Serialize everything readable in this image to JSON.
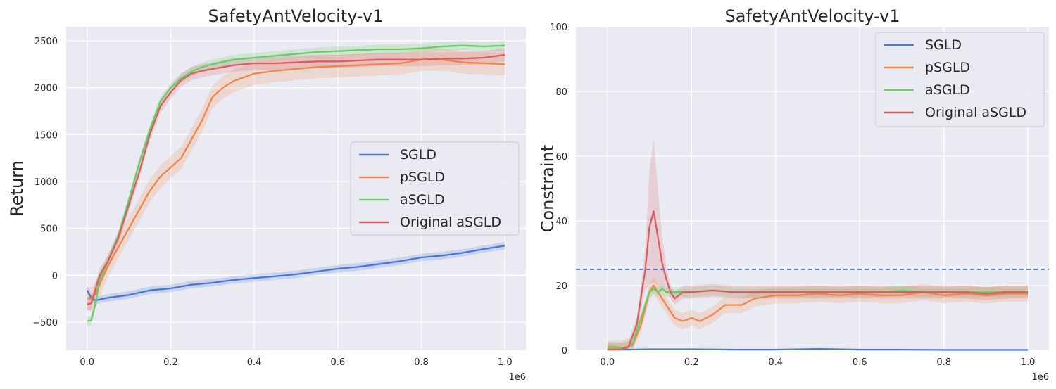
{
  "colors": {
    "SGLD": "#4878d0",
    "pSGLD": "#ee854a",
    "aSGLD": "#6acc64",
    "Original aSGLD": "#d65f5f",
    "threshold": "#4878d0"
  },
  "chart_data": [
    {
      "type": "line",
      "title": "SafetyAntVelocity-v1",
      "xlabel": "",
      "ylabel": "Return",
      "x_offset_label": "1e6",
      "xlim": [
        -0.05,
        1.05
      ],
      "ylim": [
        -800,
        2650
      ],
      "xticks": [
        0.0,
        0.2,
        0.4,
        0.6,
        0.8,
        1.0
      ],
      "xtick_labels": [
        "0.0",
        "0.2",
        "0.4",
        "0.6",
        "0.8",
        "1.0"
      ],
      "yticks": [
        -500,
        0,
        500,
        1000,
        1500,
        2000,
        2500
      ],
      "ytick_labels": [
        "−500",
        "0",
        "500",
        "1000",
        "1500",
        "2000",
        "2500"
      ],
      "legend": {
        "position": "center-right",
        "entries": [
          "SGLD",
          "pSGLD",
          "aSGLD",
          "Original aSGLD"
        ]
      },
      "series": [
        {
          "name": "SGLD",
          "x": [
            0,
            0.01,
            0.02,
            0.05,
            0.1,
            0.15,
            0.2,
            0.25,
            0.3,
            0.35,
            0.4,
            0.45,
            0.5,
            0.55,
            0.6,
            0.65,
            0.7,
            0.75,
            0.8,
            0.85,
            0.9,
            0.95,
            1.0
          ],
          "values": [
            -160,
            -240,
            -270,
            -240,
            -210,
            -160,
            -140,
            -100,
            -80,
            -50,
            -30,
            -10,
            10,
            40,
            70,
            90,
            120,
            150,
            190,
            210,
            240,
            280,
            315
          ],
          "band": 40
        },
        {
          "name": "pSGLD",
          "x": [
            0,
            0.01,
            0.02,
            0.03,
            0.05,
            0.075,
            0.1,
            0.125,
            0.15,
            0.175,
            0.2,
            0.225,
            0.25,
            0.275,
            0.3,
            0.325,
            0.35,
            0.4,
            0.45,
            0.5,
            0.55,
            0.6,
            0.65,
            0.7,
            0.75,
            0.8,
            0.85,
            0.9,
            0.95,
            1.0
          ],
          "values": [
            -240,
            -250,
            -200,
            -100,
            100,
            300,
            500,
            700,
            900,
            1050,
            1150,
            1250,
            1450,
            1650,
            1900,
            2000,
            2070,
            2150,
            2180,
            2200,
            2220,
            2230,
            2240,
            2250,
            2260,
            2300,
            2300,
            2270,
            2260,
            2250
          ],
          "band": 120
        },
        {
          "name": "aSGLD",
          "x": [
            0,
            0.01,
            0.02,
            0.03,
            0.05,
            0.075,
            0.1,
            0.125,
            0.15,
            0.175,
            0.2,
            0.225,
            0.25,
            0.275,
            0.3,
            0.35,
            0.4,
            0.45,
            0.5,
            0.55,
            0.6,
            0.65,
            0.7,
            0.75,
            0.8,
            0.85,
            0.9,
            0.95,
            1.0
          ],
          "values": [
            -490,
            -480,
            -300,
            -50,
            150,
            420,
            800,
            1200,
            1550,
            1850,
            2000,
            2100,
            2170,
            2220,
            2250,
            2300,
            2320,
            2340,
            2360,
            2380,
            2390,
            2400,
            2410,
            2410,
            2420,
            2440,
            2450,
            2440,
            2450
          ],
          "band": 50
        },
        {
          "name": "Original aSGLD",
          "x": [
            0,
            0.01,
            0.02,
            0.03,
            0.05,
            0.075,
            0.1,
            0.125,
            0.15,
            0.175,
            0.2,
            0.225,
            0.25,
            0.275,
            0.3,
            0.35,
            0.4,
            0.45,
            0.5,
            0.55,
            0.6,
            0.65,
            0.7,
            0.75,
            0.8,
            0.85,
            0.9,
            0.95,
            1.0
          ],
          "values": [
            -310,
            -300,
            -150,
            0,
            150,
            400,
            750,
            1100,
            1500,
            1800,
            1950,
            2080,
            2150,
            2180,
            2200,
            2240,
            2260,
            2260,
            2270,
            2280,
            2280,
            2290,
            2300,
            2300,
            2300,
            2310,
            2310,
            2320,
            2350
          ],
          "band": 70
        }
      ]
    },
    {
      "type": "line",
      "title": "SafetyAntVelocity-v1",
      "xlabel": "",
      "ylabel": "Constraint",
      "x_offset_label": "1e6",
      "xlim": [
        -0.075,
        1.05
      ],
      "ylim": [
        0,
        100
      ],
      "xticks": [
        0.0,
        0.2,
        0.4,
        0.6,
        0.8,
        1.0
      ],
      "xtick_labels": [
        "0.0",
        "0.2",
        "0.4",
        "0.6",
        "0.8",
        "1.0"
      ],
      "yticks": [
        0,
        20,
        40,
        60,
        80,
        100
      ],
      "ytick_labels": [
        "0",
        "20",
        "40",
        "60",
        "80",
        "100"
      ],
      "threshold": 25,
      "legend": {
        "position": "top-right",
        "entries": [
          "SGLD",
          "pSGLD",
          "aSGLD",
          "Original aSGLD"
        ]
      },
      "series": [
        {
          "name": "SGLD",
          "x": [
            0,
            0.05,
            0.1,
            0.2,
            0.3,
            0.4,
            0.5,
            0.6,
            0.7,
            0.8,
            0.9,
            1.0
          ],
          "values": [
            0.2,
            0.2,
            0.3,
            0.3,
            0.2,
            0.2,
            0.4,
            0.2,
            0.2,
            0.1,
            0.1,
            0.1
          ],
          "band": 0.3
        },
        {
          "name": "pSGLD",
          "x": [
            0,
            0.03,
            0.06,
            0.08,
            0.1,
            0.11,
            0.12,
            0.14,
            0.16,
            0.18,
            0.2,
            0.22,
            0.25,
            0.28,
            0.3,
            0.32,
            0.35,
            0.4,
            0.45,
            0.5,
            0.55,
            0.6,
            0.65,
            0.7,
            0.75,
            0.8,
            0.85,
            0.9,
            0.95,
            1.0
          ],
          "values": [
            0.5,
            0.5,
            1.5,
            8,
            18,
            20,
            18,
            14,
            10,
            9,
            10,
            9,
            11,
            14,
            14,
            14,
            16,
            17,
            17,
            17.5,
            17,
            17.5,
            17,
            17,
            18,
            17,
            17.5,
            17,
            17.5,
            17.5
          ],
          "band": 2.5
        },
        {
          "name": "aSGLD",
          "x": [
            0,
            0.02,
            0.04,
            0.06,
            0.08,
            0.1,
            0.11,
            0.12,
            0.13,
            0.14,
            0.16,
            0.18,
            0.2,
            0.25,
            0.3,
            0.35,
            0.4,
            0.45,
            0.5,
            0.55,
            0.6,
            0.65,
            0.7,
            0.75,
            0.8,
            0.85,
            0.9,
            0.95,
            1.0
          ],
          "values": [
            1.2,
            1,
            0.5,
            2,
            10,
            18,
            19,
            18,
            19,
            18,
            18,
            18,
            18,
            18.5,
            18,
            18,
            18,
            18,
            18,
            18,
            18,
            18,
            18.5,
            18,
            18,
            18,
            18,
            18,
            18
          ],
          "band": 1.5
        },
        {
          "name": "Original aSGLD",
          "x": [
            0,
            0.03,
            0.05,
            0.07,
            0.09,
            0.1,
            0.11,
            0.12,
            0.13,
            0.14,
            0.15,
            0.16,
            0.18,
            0.2,
            0.25,
            0.3,
            0.35,
            0.4,
            0.45,
            0.5,
            0.55,
            0.6,
            0.65,
            0.7,
            0.75,
            0.8,
            0.85,
            0.9,
            0.95,
            1.0
          ],
          "values": [
            0.2,
            0.2,
            1,
            8,
            25,
            38,
            43,
            35,
            27,
            22,
            18,
            16,
            18,
            18,
            18.5,
            18,
            18,
            18,
            18,
            18,
            18,
            18,
            18,
            18,
            18,
            18,
            18,
            17.5,
            18,
            18
          ],
          "band": 2,
          "peak_band": 22
        }
      ]
    }
  ]
}
